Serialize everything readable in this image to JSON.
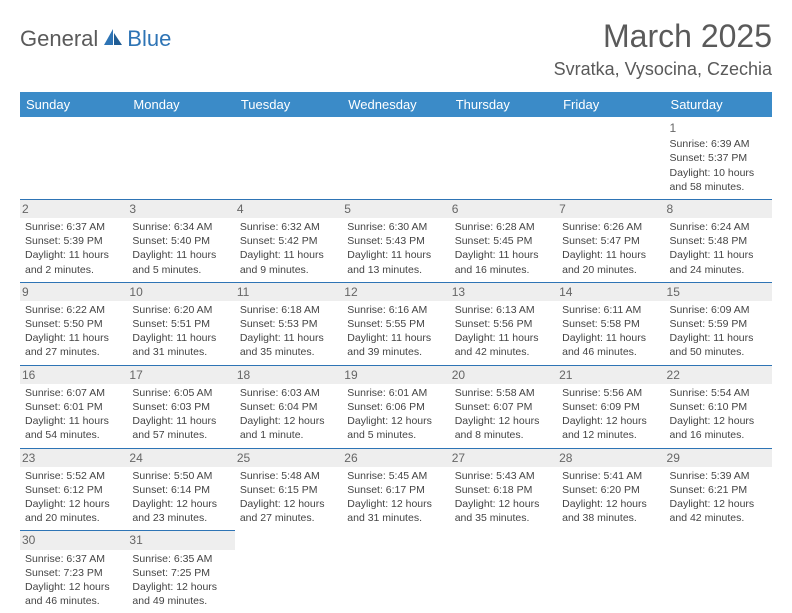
{
  "logo": {
    "general": "General",
    "blue": "Blue"
  },
  "title": "March 2025",
  "location": "Svratka, Vysocina, Czechia",
  "weekdays": [
    "Sunday",
    "Monday",
    "Tuesday",
    "Wednesday",
    "Thursday",
    "Friday",
    "Saturday"
  ],
  "colors": {
    "header_bg": "#3b8bc8",
    "header_text": "#ffffff",
    "border": "#2e74b5",
    "daynum_bg": "#eeeeee",
    "text": "#444444",
    "title": "#5a5a5a"
  },
  "days": {
    "1": {
      "sunrise": "6:39 AM",
      "sunset": "5:37 PM",
      "daylight": "10 hours and 58 minutes."
    },
    "2": {
      "sunrise": "6:37 AM",
      "sunset": "5:39 PM",
      "daylight": "11 hours and 2 minutes."
    },
    "3": {
      "sunrise": "6:34 AM",
      "sunset": "5:40 PM",
      "daylight": "11 hours and 5 minutes."
    },
    "4": {
      "sunrise": "6:32 AM",
      "sunset": "5:42 PM",
      "daylight": "11 hours and 9 minutes."
    },
    "5": {
      "sunrise": "6:30 AM",
      "sunset": "5:43 PM",
      "daylight": "11 hours and 13 minutes."
    },
    "6": {
      "sunrise": "6:28 AM",
      "sunset": "5:45 PM",
      "daylight": "11 hours and 16 minutes."
    },
    "7": {
      "sunrise": "6:26 AM",
      "sunset": "5:47 PM",
      "daylight": "11 hours and 20 minutes."
    },
    "8": {
      "sunrise": "6:24 AM",
      "sunset": "5:48 PM",
      "daylight": "11 hours and 24 minutes."
    },
    "9": {
      "sunrise": "6:22 AM",
      "sunset": "5:50 PM",
      "daylight": "11 hours and 27 minutes."
    },
    "10": {
      "sunrise": "6:20 AM",
      "sunset": "5:51 PM",
      "daylight": "11 hours and 31 minutes."
    },
    "11": {
      "sunrise": "6:18 AM",
      "sunset": "5:53 PM",
      "daylight": "11 hours and 35 minutes."
    },
    "12": {
      "sunrise": "6:16 AM",
      "sunset": "5:55 PM",
      "daylight": "11 hours and 39 minutes."
    },
    "13": {
      "sunrise": "6:13 AM",
      "sunset": "5:56 PM",
      "daylight": "11 hours and 42 minutes."
    },
    "14": {
      "sunrise": "6:11 AM",
      "sunset": "5:58 PM",
      "daylight": "11 hours and 46 minutes."
    },
    "15": {
      "sunrise": "6:09 AM",
      "sunset": "5:59 PM",
      "daylight": "11 hours and 50 minutes."
    },
    "16": {
      "sunrise": "6:07 AM",
      "sunset": "6:01 PM",
      "daylight": "11 hours and 54 minutes."
    },
    "17": {
      "sunrise": "6:05 AM",
      "sunset": "6:03 PM",
      "daylight": "11 hours and 57 minutes."
    },
    "18": {
      "sunrise": "6:03 AM",
      "sunset": "6:04 PM",
      "daylight": "12 hours and 1 minute."
    },
    "19": {
      "sunrise": "6:01 AM",
      "sunset": "6:06 PM",
      "daylight": "12 hours and 5 minutes."
    },
    "20": {
      "sunrise": "5:58 AM",
      "sunset": "6:07 PM",
      "daylight": "12 hours and 8 minutes."
    },
    "21": {
      "sunrise": "5:56 AM",
      "sunset": "6:09 PM",
      "daylight": "12 hours and 12 minutes."
    },
    "22": {
      "sunrise": "5:54 AM",
      "sunset": "6:10 PM",
      "daylight": "12 hours and 16 minutes."
    },
    "23": {
      "sunrise": "5:52 AM",
      "sunset": "6:12 PM",
      "daylight": "12 hours and 20 minutes."
    },
    "24": {
      "sunrise": "5:50 AM",
      "sunset": "6:14 PM",
      "daylight": "12 hours and 23 minutes."
    },
    "25": {
      "sunrise": "5:48 AM",
      "sunset": "6:15 PM",
      "daylight": "12 hours and 27 minutes."
    },
    "26": {
      "sunrise": "5:45 AM",
      "sunset": "6:17 PM",
      "daylight": "12 hours and 31 minutes."
    },
    "27": {
      "sunrise": "5:43 AM",
      "sunset": "6:18 PM",
      "daylight": "12 hours and 35 minutes."
    },
    "28": {
      "sunrise": "5:41 AM",
      "sunset": "6:20 PM",
      "daylight": "12 hours and 38 minutes."
    },
    "29": {
      "sunrise": "5:39 AM",
      "sunset": "6:21 PM",
      "daylight": "12 hours and 42 minutes."
    },
    "30": {
      "sunrise": "6:37 AM",
      "sunset": "7:23 PM",
      "daylight": "12 hours and 46 minutes."
    },
    "31": {
      "sunrise": "6:35 AM",
      "sunset": "7:25 PM",
      "daylight": "12 hours and 49 minutes."
    }
  },
  "labels": {
    "sunrise": "Sunrise: ",
    "sunset": "Sunset: ",
    "daylight": "Daylight: "
  },
  "grid": [
    [
      null,
      null,
      null,
      null,
      null,
      null,
      "1"
    ],
    [
      "2",
      "3",
      "4",
      "5",
      "6",
      "7",
      "8"
    ],
    [
      "9",
      "10",
      "11",
      "12",
      "13",
      "14",
      "15"
    ],
    [
      "16",
      "17",
      "18",
      "19",
      "20",
      "21",
      "22"
    ],
    [
      "23",
      "24",
      "25",
      "26",
      "27",
      "28",
      "29"
    ],
    [
      "30",
      "31",
      null,
      null,
      null,
      null,
      null
    ]
  ]
}
